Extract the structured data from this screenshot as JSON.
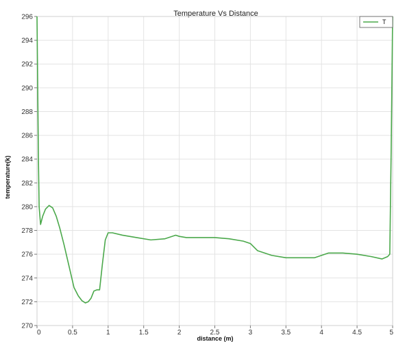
{
  "chart_data": {
    "type": "line",
    "title": "Temperature Vs Distance",
    "xlabel": "distance (m)",
    "ylabel": "temperature(k)",
    "xlim": [
      0,
      5
    ],
    "ylim": [
      270,
      296
    ],
    "x_ticks": [
      0,
      0.5,
      1,
      1.5,
      2,
      2.5,
      3,
      3.5,
      4,
      4.5,
      5
    ],
    "x_tick_labels": [
      "0",
      "0.5",
      "1",
      "1.5",
      "2",
      "2.5",
      "3",
      "3.5",
      "4",
      "4.5",
      "5"
    ],
    "y_ticks": [
      270,
      272,
      274,
      276,
      278,
      280,
      282,
      284,
      286,
      288,
      290,
      292,
      294,
      296
    ],
    "y_tick_labels": [
      "270",
      "272",
      "274",
      "276",
      "278",
      "280",
      "282",
      "284",
      "286",
      "288",
      "290",
      "292",
      "294",
      "296"
    ],
    "grid": true,
    "legend_position": "top-right",
    "series": [
      {
        "name": "T",
        "color": "#4aa84a",
        "x": [
          0,
          0.01,
          0.02,
          0.03,
          0.05,
          0.08,
          0.12,
          0.17,
          0.22,
          0.27,
          0.32,
          0.38,
          0.45,
          0.52,
          0.58,
          0.63,
          0.68,
          0.72,
          0.76,
          0.8,
          0.84,
          0.88,
          0.92,
          0.96,
          1.0,
          1.03,
          1.06,
          1.2,
          1.4,
          1.6,
          1.8,
          1.95,
          2.0,
          2.1,
          2.3,
          2.5,
          2.7,
          2.9,
          3.0,
          3.1,
          3.3,
          3.5,
          3.7,
          3.9,
          4.0,
          4.1,
          4.3,
          4.5,
          4.7,
          4.85,
          4.93,
          4.96,
          4.98,
          5.0
        ],
        "y": [
          296,
          290,
          284,
          280,
          278.5,
          279.2,
          279.8,
          280.1,
          279.9,
          279.2,
          278.2,
          276.8,
          275.0,
          273.2,
          272.5,
          272.1,
          271.9,
          272.0,
          272.3,
          272.9,
          273.0,
          273.0,
          275.2,
          277.2,
          277.8,
          277.8,
          277.8,
          277.6,
          277.4,
          277.2,
          277.3,
          277.6,
          277.5,
          277.4,
          277.4,
          277.4,
          277.3,
          277.1,
          276.9,
          276.3,
          275.9,
          275.7,
          275.7,
          275.7,
          275.9,
          276.1,
          276.1,
          276.0,
          275.8,
          275.6,
          275.8,
          276.0,
          285,
          296
        ]
      }
    ]
  }
}
